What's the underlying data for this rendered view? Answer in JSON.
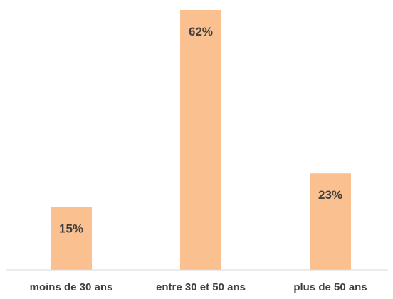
{
  "chart_data": {
    "type": "bar",
    "title": "",
    "xlabel": "",
    "ylabel": "",
    "categories": [
      "moins de 30 ans",
      "entre 30 et 50 ans",
      "plus de 50 ans"
    ],
    "values": [
      15,
      62,
      23
    ],
    "data_labels": [
      "15%",
      "62%",
      "23%"
    ],
    "unit": "%",
    "ylim": [
      0,
      62
    ],
    "grid": false,
    "legend": "none",
    "bar_color": "#FAC090",
    "axis_color": "#D9D9D9",
    "label_color": "#404040"
  }
}
